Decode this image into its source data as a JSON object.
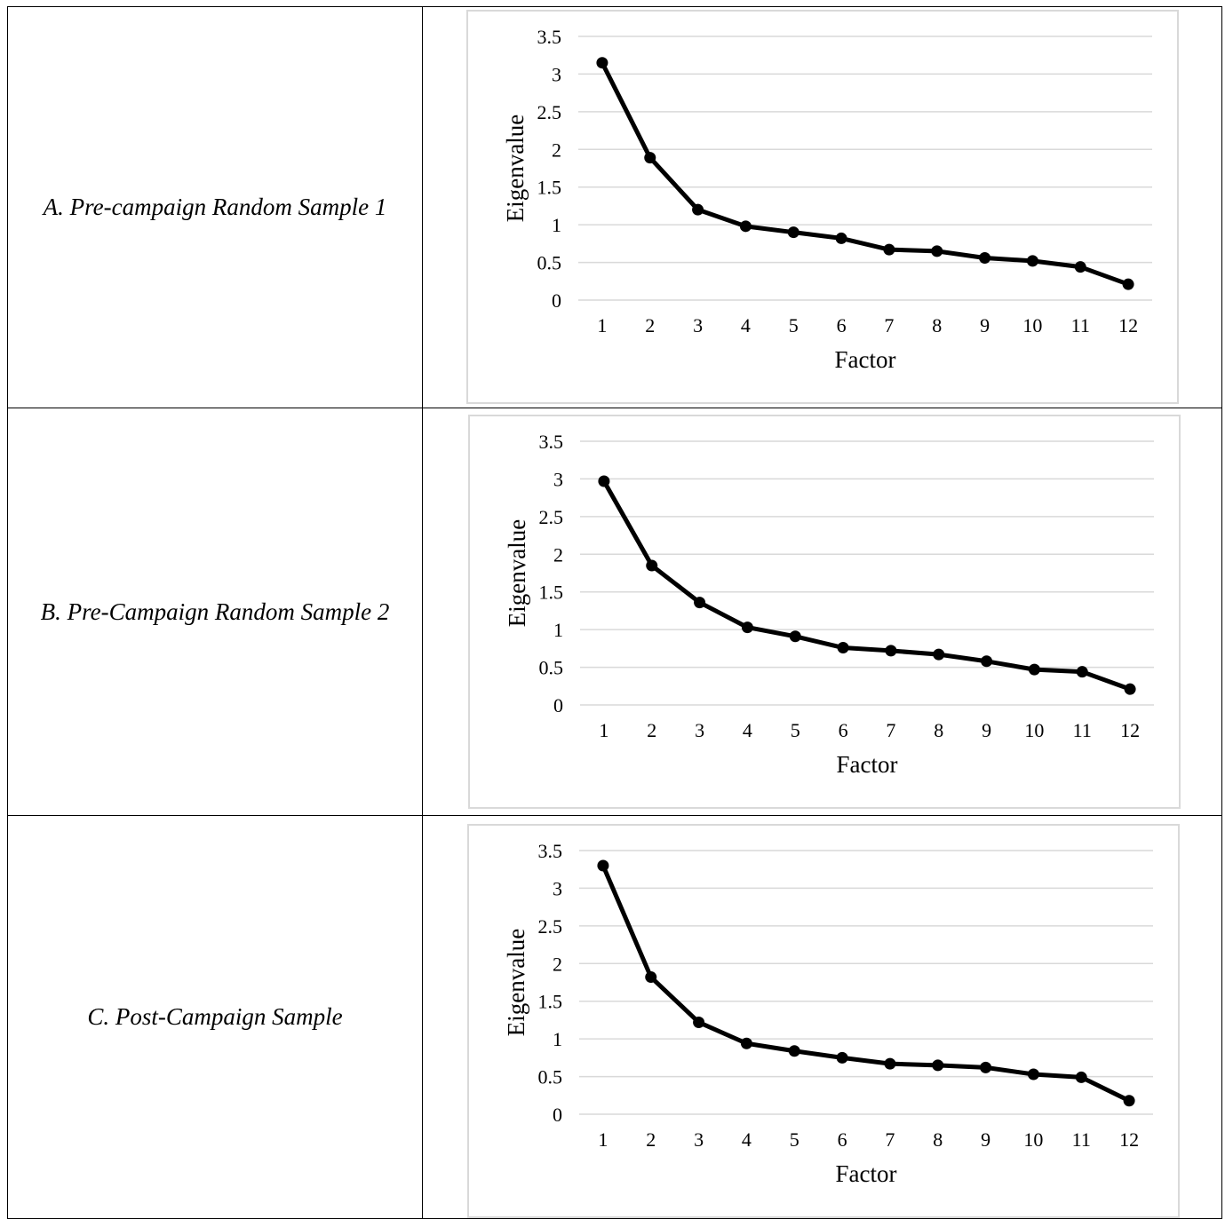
{
  "panels": [
    {
      "label": "A. Pre-campaign Random Sample 1"
    },
    {
      "label": "B. Pre-Campaign Random Sample 2"
    },
    {
      "label": "C. Post-Campaign Sample"
    }
  ],
  "chart_data": [
    {
      "type": "line",
      "xlabel": "Factor",
      "ylabel": "Eigenvalue",
      "categories": [
        "1",
        "2",
        "3",
        "4",
        "5",
        "6",
        "7",
        "8",
        "9",
        "10",
        "11",
        "12"
      ],
      "yticks": [
        "0",
        "0.5",
        "1",
        "1.5",
        "2",
        "2.5",
        "3",
        "3.5"
      ],
      "ylim": [
        0,
        3.5
      ],
      "grid": true,
      "legend": "none",
      "series": [
        {
          "values": [
            3.15,
            1.89,
            1.2,
            0.98,
            0.9,
            0.82,
            0.67,
            0.65,
            0.56,
            0.52,
            0.44,
            0.21
          ]
        }
      ],
      "line_color": "#000000",
      "grid_color": "#d9d9d9"
    },
    {
      "type": "line",
      "xlabel": "Factor",
      "ylabel": "Eigenvalue",
      "categories": [
        "1",
        "2",
        "3",
        "4",
        "5",
        "6",
        "7",
        "8",
        "9",
        "10",
        "11",
        "12"
      ],
      "yticks": [
        "0",
        "0.5",
        "1",
        "1.5",
        "2",
        "2.5",
        "3",
        "3.5"
      ],
      "ylim": [
        0,
        3.5
      ],
      "grid": true,
      "legend": "none",
      "series": [
        {
          "values": [
            2.97,
            1.85,
            1.36,
            1.03,
            0.91,
            0.76,
            0.72,
            0.67,
            0.58,
            0.47,
            0.44,
            0.21
          ]
        }
      ],
      "line_color": "#000000",
      "grid_color": "#d9d9d9"
    },
    {
      "type": "line",
      "xlabel": "Factor",
      "ylabel": "Eigenvalue",
      "categories": [
        "1",
        "2",
        "3",
        "4",
        "5",
        "6",
        "7",
        "8",
        "9",
        "10",
        "11",
        "12"
      ],
      "yticks": [
        "0",
        "0.5",
        "1",
        "1.5",
        "2",
        "2.5",
        "3",
        "3.5"
      ],
      "ylim": [
        0,
        3.5
      ],
      "grid": true,
      "legend": "none",
      "series": [
        {
          "values": [
            3.3,
            1.82,
            1.22,
            0.94,
            0.84,
            0.75,
            0.67,
            0.65,
            0.62,
            0.53,
            0.49,
            0.18
          ]
        }
      ],
      "line_color": "#000000",
      "grid_color": "#d9d9d9"
    }
  ]
}
